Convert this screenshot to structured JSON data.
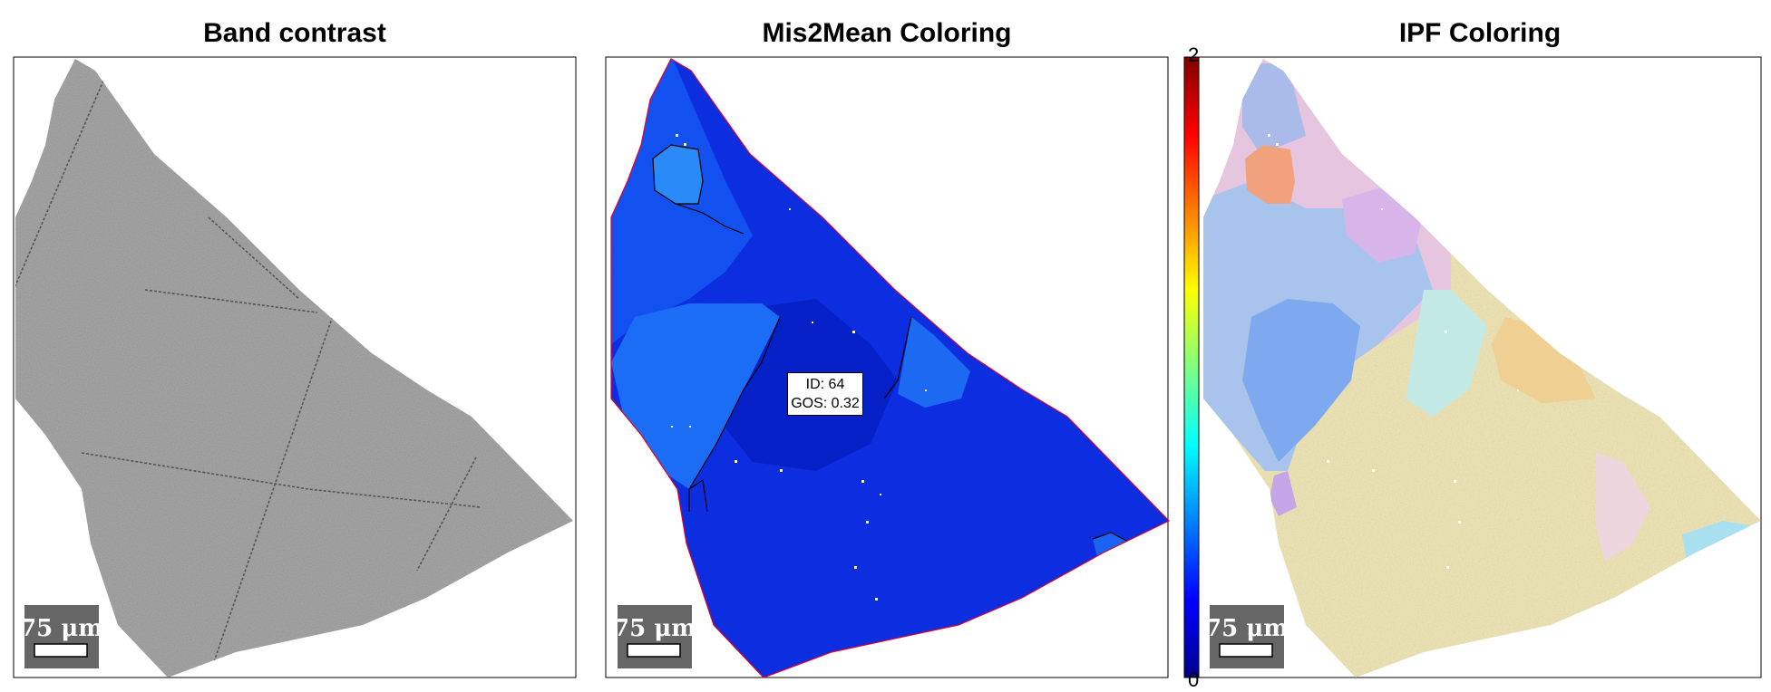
{
  "panels": {
    "band_contrast": {
      "title": "Band contrast",
      "scalebar": "75 μm"
    },
    "mis2mean": {
      "title": "Mis2Mean Coloring",
      "scalebar": "75 μm"
    },
    "ipf": {
      "title": "IPF Coloring",
      "scalebar": "75 μm"
    }
  },
  "annotation": {
    "id_line": "ID: 64",
    "gos_line": "GOS: 0.32"
  },
  "colorbar": {
    "min_label": "0",
    "max_label": "2",
    "colormap": "jet"
  },
  "colors": {
    "scalebar_bg": "#666666",
    "grain_boundary": "#000000",
    "map_edge": "#e0002a",
    "band_gray": "#a6a6a6",
    "mis_base": "#0b2ee8"
  }
}
